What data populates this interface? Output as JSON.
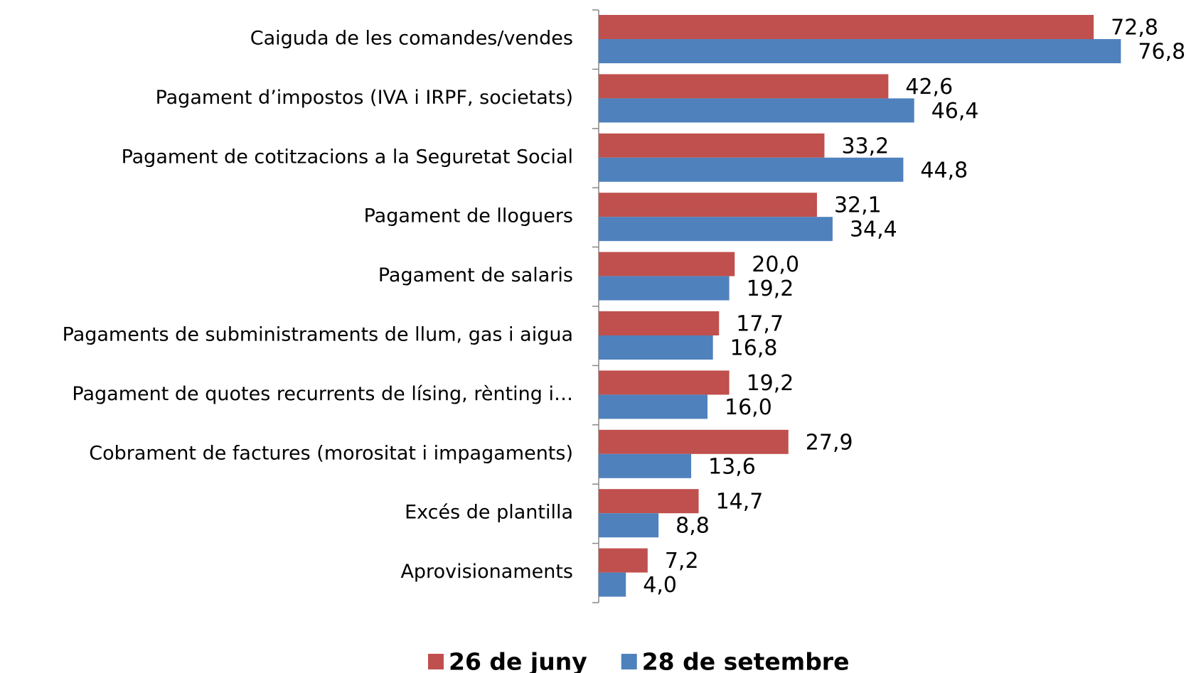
{
  "chart_data": {
    "type": "bar",
    "orientation": "horizontal",
    "categories": [
      "Caiguda de les comandes/vendes",
      "Pagament d’impostos (IVA i IRPF, societats)",
      "Pagament de cotitzacions a la Seguretat Social",
      "Pagament de lloguers",
      "Pagament de salaris",
      "Pagaments de subministraments de llum, gas i aigua",
      "Pagament de quotes recurrents de lísing, rènting i…",
      "Cobrament de factures (morositat i impagaments)",
      "Excés de plantilla",
      "Aprovisionaments"
    ],
    "series": [
      {
        "name": "26 de juny",
        "color": "#c0504d",
        "values": [
          72.8,
          42.6,
          33.2,
          32.1,
          20.0,
          17.7,
          19.2,
          27.9,
          14.7,
          7.2
        ],
        "value_labels": [
          "72,8",
          "42,6",
          "33,2",
          "32,1",
          "20,0",
          "17,7",
          "19,2",
          "27,9",
          "14,7",
          "7,2"
        ]
      },
      {
        "name": "28 de setembre",
        "color": "#4f81bd",
        "values": [
          76.8,
          46.4,
          44.8,
          34.4,
          19.2,
          16.8,
          16.0,
          13.6,
          8.8,
          4.0
        ],
        "value_labels": [
          "76,8",
          "46,4",
          "44,8",
          "34,4",
          "19,2",
          "16,8",
          "16,0",
          "13,6",
          "8,8",
          "4,0"
        ]
      }
    ],
    "xlim": [
      0,
      80
    ],
    "legend": "bottom"
  }
}
